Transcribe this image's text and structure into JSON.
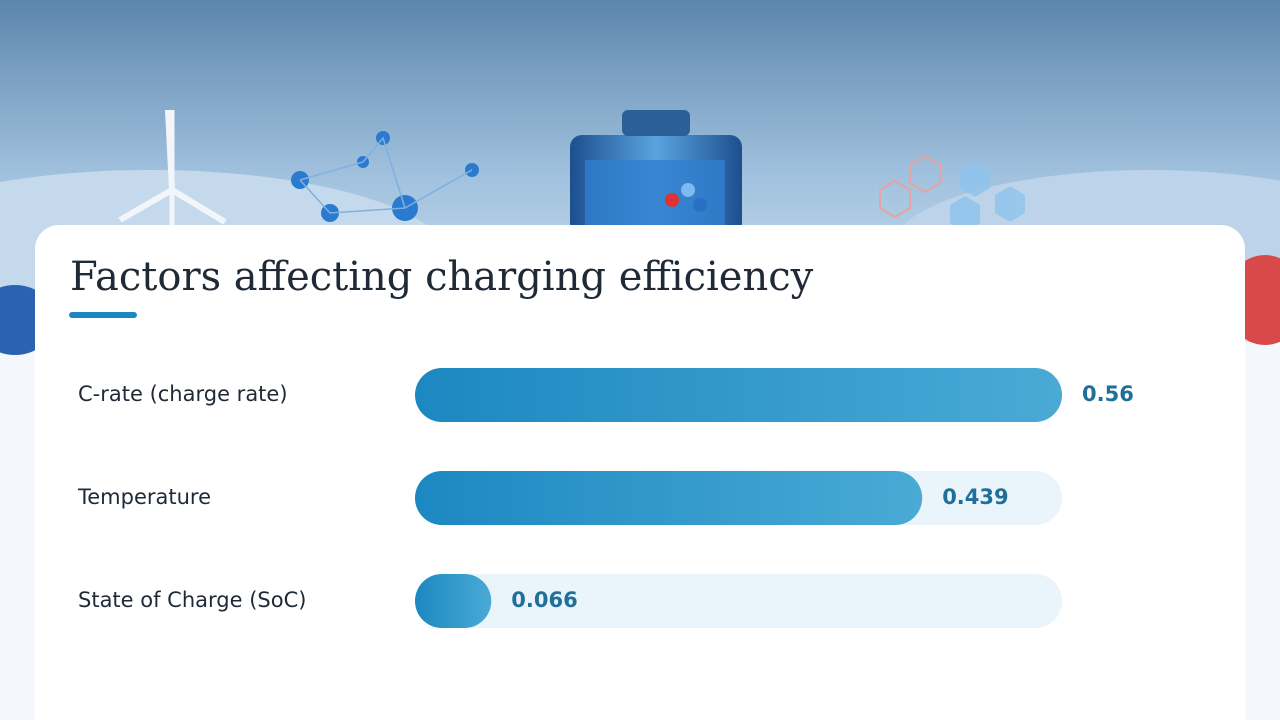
{
  "chart_data": {
    "type": "bar",
    "orientation": "horizontal",
    "title": "Factors affecting charging efficiency",
    "categories": [
      "C-rate (charge rate)",
      "Temperature",
      "State of Charge (SoC)"
    ],
    "values": [
      0.56,
      0.439,
      0.066
    ],
    "color": "#1c88c1",
    "xlim": [
      0,
      0.56
    ]
  }
}
